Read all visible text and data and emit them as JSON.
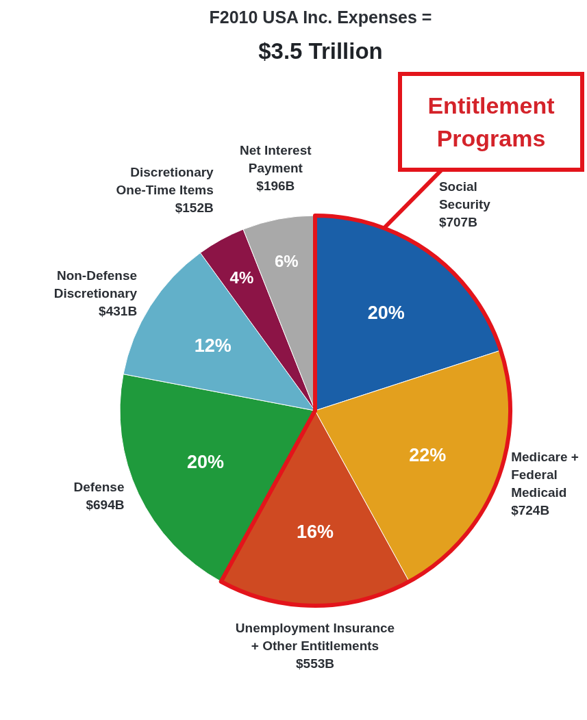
{
  "chart_data": {
    "type": "pie",
    "title": "F2010 USA Inc. Expenses =",
    "subtitle": "$3.5 Trillion",
    "categories": [
      "Social\nSecurity\n$707B",
      "Medicare +\nFederal\nMedicaid\n$724B",
      "Unemployment Insurance\n+ Other Entitlements\n$553B",
      "Defense\n$694B",
      "Non-Defense\nDiscretionary\n$431B",
      "Discretionary\nOne-Time Items\n$152B",
      "Net Interest\nPayment\n$196B"
    ],
    "values": [
      20,
      22,
      16,
      20,
      12,
      4,
      6
    ],
    "value_labels": [
      "20%",
      "22%",
      "16%",
      "20%",
      "12%",
      "4%",
      "6%"
    ],
    "colors": [
      "#1a5fa8",
      "#e3a01e",
      "#cf4a22",
      "#1f9a3c",
      "#62b0c9",
      "#8c1446",
      "#a9a9a9"
    ],
    "annotations": [
      "Entitlement Programs"
    ]
  }
}
